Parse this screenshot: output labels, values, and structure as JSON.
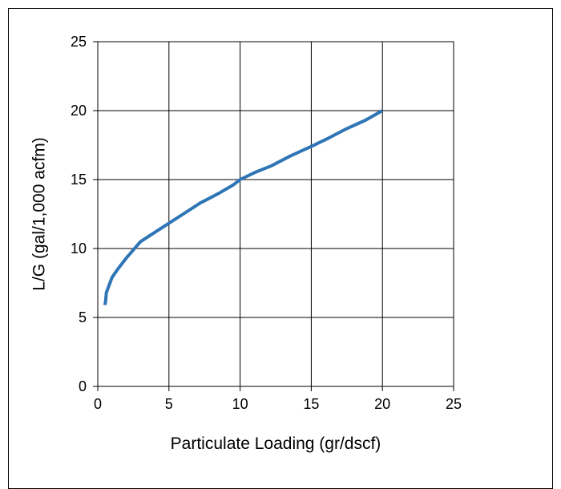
{
  "chart_data": {
    "type": "line",
    "title": "",
    "xlabel": "Particulate Loading (gr/dscf)",
    "ylabel": "L/G (gal/1,000 acfm)",
    "xlim": [
      0,
      25
    ],
    "ylim": [
      0,
      25
    ],
    "xticks": [
      0,
      5,
      10,
      15,
      20,
      25
    ],
    "yticks": [
      0,
      5,
      10,
      15,
      20,
      25
    ],
    "grid": true,
    "legend": "none",
    "series": [
      {
        "color": "#2e75b6",
        "x": [
          0.5,
          0.55,
          0.6,
          1.0,
          1.4,
          2.0,
          3.0,
          4.5,
          6.0,
          7.2,
          8.5,
          9.5,
          10.0,
          11.0,
          12.2,
          13.5,
          15.0,
          16.2,
          17.5,
          18.8,
          20.0
        ],
        "y": [
          5.9,
          6.2,
          6.8,
          7.9,
          8.5,
          9.3,
          10.5,
          11.5,
          12.5,
          13.3,
          14.0,
          14.6,
          15.0,
          15.5,
          16.0,
          16.7,
          17.4,
          18.0,
          18.7,
          19.3,
          20.0
        ]
      }
    ]
  }
}
